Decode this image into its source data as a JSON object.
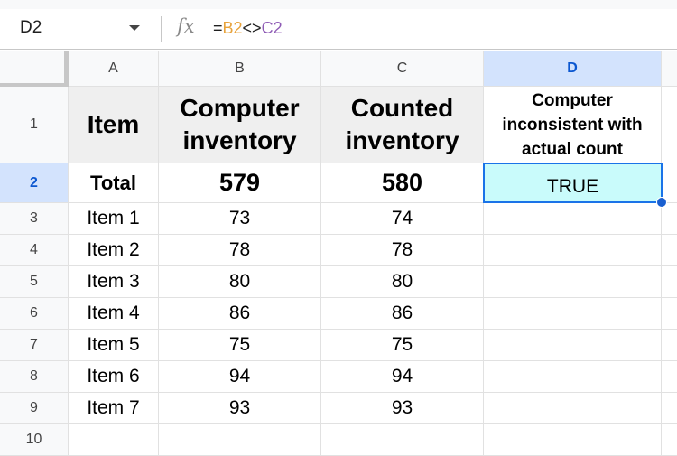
{
  "formula_bar": {
    "name_box": "D2",
    "fx_icon": "fx-icon",
    "formula_prefix": "=",
    "ref1": "B2",
    "operator": "<>",
    "ref2": "C2",
    "ref1_color": "#e8a33c",
    "ref2_color": "#8e5bb5"
  },
  "columns": [
    "A",
    "B",
    "C",
    "D"
  ],
  "rows": [
    "1",
    "2",
    "3",
    "4",
    "5",
    "6",
    "7",
    "8",
    "9",
    "10"
  ],
  "header": {
    "item": "Item",
    "computer": "Computer inventory",
    "counted": "Counted inventory",
    "inconsistent": "Computer inconsistent with actual count"
  },
  "total": {
    "label": "Total",
    "computer": "579",
    "counted": "580",
    "result": "TRUE"
  },
  "items": [
    {
      "name": "Item 1",
      "computer": "73",
      "counted": "74"
    },
    {
      "name": "Item 2",
      "computer": "78",
      "counted": "78"
    },
    {
      "name": "Item 3",
      "computer": "80",
      "counted": "80"
    },
    {
      "name": "Item 4",
      "computer": "86",
      "counted": "86"
    },
    {
      "name": "Item 5",
      "computer": "75",
      "counted": "75"
    },
    {
      "name": "Item 6",
      "computer": "94",
      "counted": "94"
    },
    {
      "name": "Item 7",
      "computer": "93",
      "counted": "93"
    }
  ],
  "selection_color": "#1a73e8"
}
